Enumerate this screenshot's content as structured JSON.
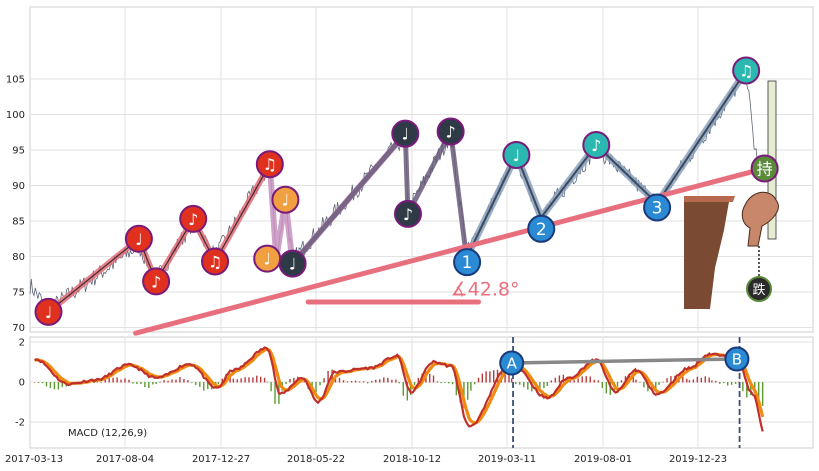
{
  "chart_data": [
    {
      "type": "line",
      "panel": "price",
      "grid": true,
      "ylim": [
        69.5,
        109.5
      ],
      "yticks": [
        70,
        75,
        80,
        85,
        90,
        95,
        100,
        105
      ],
      "colors": {
        "price_line": "#4a5568",
        "up_wave": "#e46b78",
        "down_wave": "#8aa0c0",
        "dark_wave": "#2e3a46",
        "support_trend": "#e8707e",
        "angle_annotation": "#e8707e",
        "marker_red": "#e0301e",
        "marker_orange": "#f0a040",
        "marker_dark": "#2e3a46",
        "marker_teal": "#2ab8b0",
        "marker_blue": "#2a8ad4",
        "marker_green": "#5a8a3a",
        "marker_ring": "#7a1a7a"
      },
      "annotations": {
        "angle_text": "∡42.8°",
        "hold_label": "持",
        "decline_label": "跌"
      },
      "signal_markers": [
        {
          "date": "2017-04-10",
          "price": 72.2,
          "symbol": "♩",
          "color": "red"
        },
        {
          "date": "2017-08-25",
          "price": 82.5,
          "symbol": "♩",
          "color": "red"
        },
        {
          "date": "2017-09-20",
          "price": 76.5,
          "symbol": "♪",
          "color": "red"
        },
        {
          "date": "2017-11-15",
          "price": 85.3,
          "symbol": "♪",
          "color": "red"
        },
        {
          "date": "2017-12-18",
          "price": 79.3,
          "symbol": "♫",
          "color": "red"
        },
        {
          "date": "2018-03-12",
          "price": 93.0,
          "symbol": "♫",
          "color": "red"
        },
        {
          "date": "2018-03-08",
          "price": 79.7,
          "symbol": "♩",
          "color": "orange"
        },
        {
          "date": "2018-04-05",
          "price": 88.0,
          "symbol": "♩",
          "color": "orange"
        },
        {
          "date": "2018-04-16",
          "price": 79.0,
          "symbol": "♩",
          "color": "dark"
        },
        {
          "date": "2018-10-02",
          "price": 97.3,
          "symbol": "♩",
          "color": "dark"
        },
        {
          "date": "2018-10-06",
          "price": 86.0,
          "symbol": "♪",
          "color": "dark"
        },
        {
          "date": "2018-12-12",
          "price": 97.6,
          "symbol": "♪",
          "color": "dark"
        },
        {
          "date": "2019-03-25",
          "price": 94.3,
          "symbol": "♩",
          "color": "teal"
        },
        {
          "date": "2019-07-22",
          "price": 95.7,
          "symbol": "♪",
          "color": "teal"
        },
        {
          "date": "2020-03-05",
          "price": 106.2,
          "symbol": "♫",
          "color": "teal"
        },
        {
          "date": "2020-04-02",
          "price": 92.4,
          "symbol": "持",
          "color": "green"
        },
        {
          "date": "2019-01-07",
          "price": 79.2,
          "symbol": "1",
          "color": "blue"
        },
        {
          "date": "2019-05-01",
          "price": 83.9,
          "symbol": "2",
          "color": "blue"
        },
        {
          "date": "2019-10-22",
          "price": 86.9,
          "symbol": "3",
          "color": "blue"
        }
      ]
    },
    {
      "type": "line",
      "panel": "macd",
      "title": "MACD (12,26,9)",
      "grid": true,
      "ylim": [
        -3.1,
        2.15
      ],
      "yticks": [
        -2,
        0,
        2
      ],
      "colors": {
        "dif": "#c0302a",
        "dea": "#f08a10",
        "hist_up": "#b83a3a",
        "hist_down": "#5a9a30",
        "div_line": "#888888",
        "vline": "#3a5070",
        "marker_blue": "#2a8ad4"
      },
      "divergence_markers": [
        {
          "date": "2019-03-18",
          "value": 0.95,
          "label": "A"
        },
        {
          "date": "2020-02-20",
          "value": 1.15,
          "label": "B"
        }
      ],
      "vlines": [
        "2019-03-20",
        "2020-02-24"
      ]
    }
  ],
  "x_axis": {
    "start": "2017-03-13",
    "end": "2020-05-20",
    "tick_labels": [
      "2017-03-13",
      "2017-08-04",
      "2017-12-27",
      "2018-05-22",
      "2018-10-12",
      "2019-03-11",
      "2019-08-01",
      "2019-12-23"
    ]
  }
}
